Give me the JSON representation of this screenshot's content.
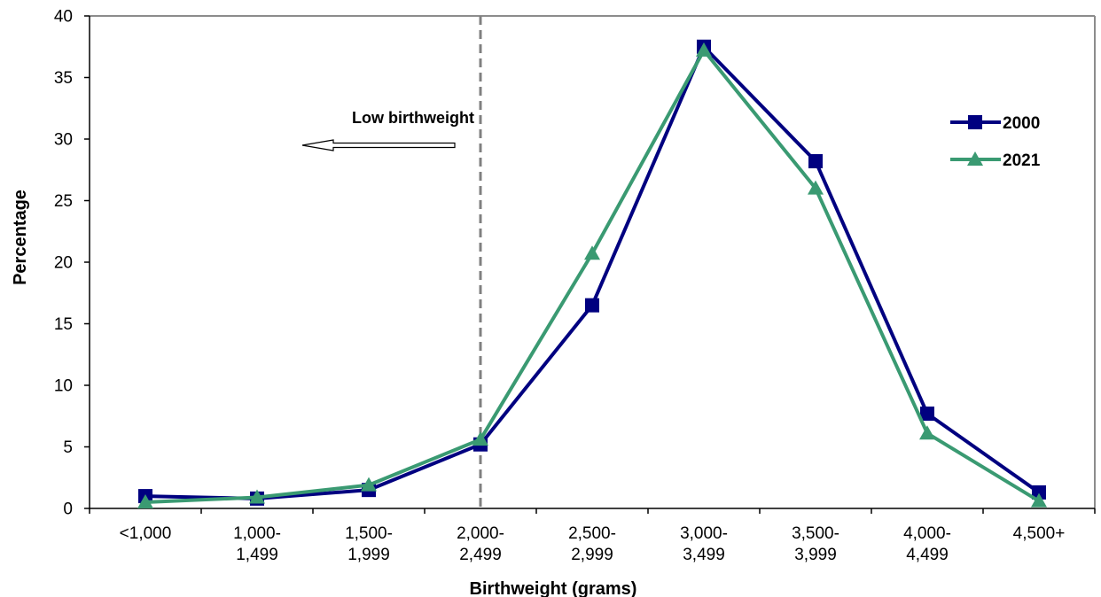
{
  "chart_data": {
    "type": "line",
    "xlabel": "Birthweight (grams)",
    "ylabel": "Percentage",
    "ylim": [
      0,
      40
    ],
    "yticks": [
      0,
      5,
      10,
      15,
      20,
      25,
      30,
      35,
      40
    ],
    "categories": [
      [
        "<1,000"
      ],
      [
        "1,000-",
        "1,499"
      ],
      [
        "1,500-",
        "1,999"
      ],
      [
        "2,000-",
        "2,499"
      ],
      [
        "2,500-",
        "2,999"
      ],
      [
        "3,000-",
        "3,499"
      ],
      [
        "3,500-",
        "3,999"
      ],
      [
        "4,000-",
        "4,499"
      ],
      [
        "4,500+"
      ]
    ],
    "series": [
      {
        "name": "2000",
        "color": "#000080",
        "marker": "square",
        "values": [
          1.0,
          0.8,
          1.5,
          5.2,
          16.5,
          37.5,
          28.2,
          7.7,
          1.3
        ]
      },
      {
        "name": "2021",
        "color": "#3a9a72",
        "marker": "triangle",
        "values": [
          0.5,
          0.9,
          1.9,
          5.6,
          20.7,
          37.2,
          26.0,
          6.1,
          0.6
        ]
      }
    ],
    "reference_line": {
      "category_index": 3,
      "style": "dashed",
      "color": "#808080"
    },
    "annotation": {
      "text": "Low birthweight",
      "arrow": "left"
    },
    "legend_position": "top-right",
    "grid": false
  }
}
